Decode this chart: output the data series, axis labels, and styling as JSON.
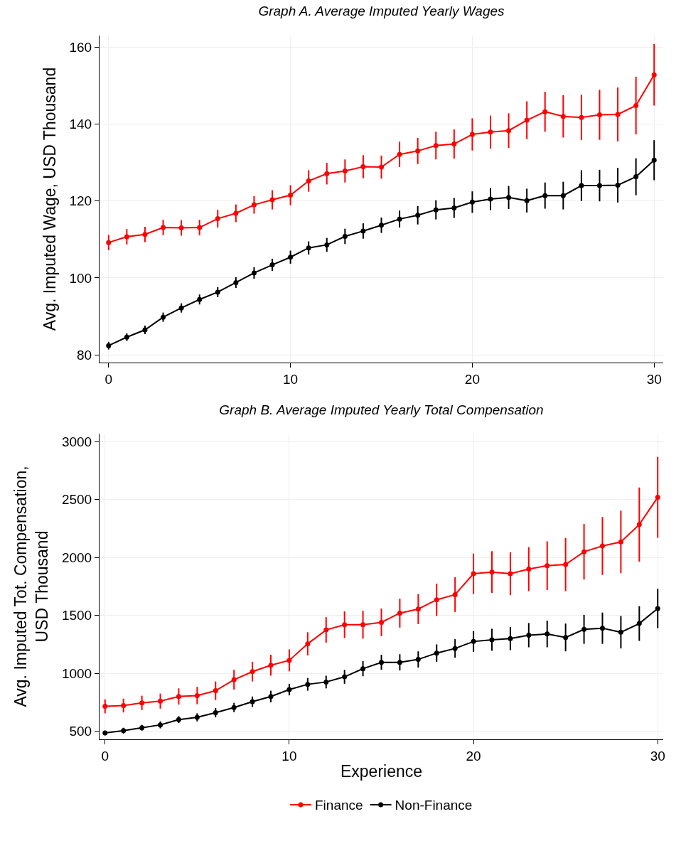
{
  "chart_data": [
    {
      "type": "line",
      "title": "Graph A. Average Imputed Yearly Wages",
      "ylabel": "Avg. Imputed Wage, USD Thousand",
      "x": [
        0,
        1,
        2,
        3,
        4,
        5,
        6,
        7,
        8,
        9,
        10,
        11,
        12,
        13,
        14,
        15,
        16,
        17,
        18,
        19,
        20,
        21,
        22,
        23,
        24,
        25,
        26,
        27,
        28,
        29,
        30
      ],
      "series": [
        {
          "color": "#ff0000",
          "values": [
            109.2,
            110.7,
            111.3,
            113.1,
            113.0,
            113.1,
            115.4,
            116.8,
            119.0,
            120.3,
            121.5,
            125.2,
            127.1,
            127.8,
            128.9,
            128.8,
            132.1,
            133.0,
            134.4,
            134.8,
            137.3,
            137.9,
            138.3,
            141.0,
            143.2,
            142.0,
            141.7,
            142.4,
            142.5,
            144.8,
            152.8
          ],
          "errors": [
            2,
            2,
            2,
            2,
            2,
            2,
            2.3,
            2.3,
            2.3,
            2.5,
            2.6,
            2.8,
            2.8,
            3,
            3,
            3,
            3.3,
            3.4,
            3.6,
            3.8,
            4.2,
            4.3,
            4.5,
            4.9,
            5.2,
            5.5,
            5.9,
            6.5,
            7,
            7.5,
            8
          ]
        },
        {
          "color": "#000000",
          "values": [
            82.4,
            84.6,
            86.5,
            89.8,
            92.2,
            94.4,
            96.3,
            98.8,
            101.3,
            103.4,
            105.4,
            107.8,
            108.6,
            110.8,
            112.2,
            113.7,
            115.3,
            116.3,
            117.7,
            118.2,
            119.7,
            120.5,
            120.9,
            120.1,
            121.4,
            121.4,
            124.0,
            124.0,
            124.1,
            126.3,
            130.6
          ],
          "errors": [
            1,
            1,
            1.1,
            1.2,
            1.2,
            1.3,
            1.3,
            1.4,
            1.5,
            1.6,
            1.7,
            1.7,
            1.8,
            2,
            2,
            2,
            2.2,
            2.4,
            2.5,
            2.6,
            2.8,
            2.9,
            3,
            3.1,
            3.4,
            3.6,
            4,
            4.1,
            4.5,
            4.8,
            5.2
          ]
        }
      ],
      "xlim": [
        -0.5,
        30.5
      ],
      "xticks": [
        0,
        10,
        20,
        30
      ],
      "ylim": [
        78,
        163
      ],
      "yticks": [
        80,
        100,
        120,
        140,
        160
      ],
      "grid": true,
      "legend": false,
      "marker": "circle",
      "line_style": "solid"
    },
    {
      "type": "line",
      "title": "Graph B. Average Imputed Yearly Total Compensation",
      "xlabel": "Experience",
      "ylabel": "Avg. Imputed Tot. Compensation,\nUSD Thousand",
      "x": [
        0,
        1,
        2,
        3,
        4,
        5,
        6,
        7,
        8,
        9,
        10,
        11,
        12,
        13,
        14,
        15,
        16,
        17,
        18,
        19,
        20,
        21,
        22,
        23,
        24,
        25,
        26,
        27,
        28,
        29,
        30
      ],
      "series": [
        {
          "name": "Finance",
          "color": "#ff0000",
          "values": [
            715,
            722,
            745,
            760,
            800,
            808,
            850,
            945,
            1015,
            1070,
            1112,
            1255,
            1375,
            1420,
            1420,
            1440,
            1520,
            1555,
            1635,
            1680,
            1860,
            1875,
            1860,
            1900,
            1930,
            1940,
            2050,
            2100,
            2135,
            2285,
            2520
          ],
          "errors": [
            60,
            60,
            62,
            65,
            70,
            75,
            80,
            85,
            85,
            90,
            95,
            100,
            110,
            115,
            120,
            120,
            125,
            130,
            140,
            150,
            175,
            180,
            185,
            190,
            210,
            230,
            240,
            250,
            270,
            320,
            350
          ]
        },
        {
          "name": "Non-Finance",
          "color": "#000000",
          "values": [
            485,
            505,
            530,
            555,
            600,
            620,
            660,
            705,
            755,
            800,
            860,
            905,
            925,
            970,
            1040,
            1095,
            1095,
            1120,
            1175,
            1215,
            1275,
            1290,
            1300,
            1330,
            1340,
            1310,
            1380,
            1390,
            1355,
            1430,
            1560
          ],
          "errors": [
            20,
            25,
            25,
            30,
            30,
            35,
            40,
            40,
            45,
            50,
            50,
            55,
            55,
            60,
            65,
            65,
            70,
            70,
            75,
            80,
            90,
            95,
            100,
            105,
            115,
            120,
            125,
            135,
            140,
            150,
            170
          ]
        }
      ],
      "xlim": [
        -0.3,
        30.3
      ],
      "xticks": [
        0,
        10,
        20,
        30
      ],
      "ylim": [
        430,
        3070
      ],
      "yticks": [
        500,
        1000,
        1500,
        2000,
        2500,
        3000
      ],
      "grid": true,
      "legend": "bottom",
      "marker": "circle",
      "line_style": "solid"
    }
  ]
}
